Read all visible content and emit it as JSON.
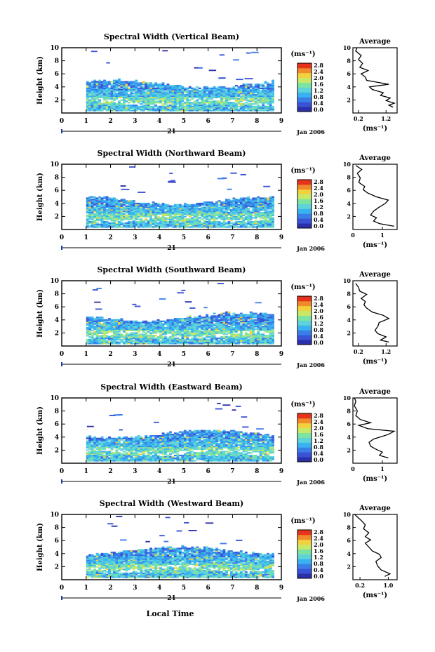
{
  "figure": {
    "xlabel": "Local Time",
    "date_label": "21",
    "month_label": "Jan 2006",
    "ylabel": "Height (km)",
    "units": "(ms⁻¹)",
    "avg_title": "Average",
    "avg_xlabel": "(ms⁻¹)",
    "colorbar_ticks": [
      "0.0",
      "0.4",
      "0.8",
      "1.2",
      "1.6",
      "2.0",
      "2.4",
      "2.8"
    ],
    "colors": [
      "#ffffff",
      "#2b2fa8",
      "#3a53d6",
      "#3a7fe8",
      "#38b2f0",
      "#5fd4d8",
      "#7de3a0",
      "#c8e86a",
      "#f2d23c",
      "#f08a2a",
      "#e6331c"
    ]
  },
  "chart_data": [
    {
      "type": "heatmap",
      "title": "Spectral Width (Vertical Beam)",
      "x_ticks": [
        "0",
        "1",
        "2",
        "3",
        "4",
        "5",
        "6",
        "7",
        "8",
        "9"
      ],
      "y_ticks": [
        "2",
        "4",
        "6",
        "8",
        "10"
      ],
      "xlim": [
        0,
        9
      ],
      "ylim": [
        0,
        10
      ],
      "data_columns": [
        1.0,
        8.6
      ],
      "clim": [
        0.0,
        2.8
      ],
      "avg": {
        "x_ticks": [
          "0.2",
          "1.2"
        ],
        "xlim": [
          0.0,
          1.6
        ],
        "profile": [
          [
            1.45,
            0.9
          ],
          [
            1.3,
            1.2
          ],
          [
            1.5,
            1.5
          ],
          [
            1.2,
            1.9
          ],
          [
            1.35,
            2.3
          ],
          [
            1.0,
            2.7
          ],
          [
            1.1,
            3.1
          ],
          [
            0.7,
            3.6
          ],
          [
            0.6,
            4.0
          ],
          [
            1.3,
            4.4
          ],
          [
            0.5,
            5.0
          ],
          [
            0.45,
            5.5
          ],
          [
            0.3,
            6.0
          ],
          [
            0.55,
            6.5
          ],
          [
            0.25,
            7.0
          ],
          [
            0.35,
            7.6
          ],
          [
            0.2,
            8.2
          ],
          [
            0.3,
            8.8
          ],
          [
            0.1,
            9.5
          ],
          [
            0.15,
            10.0
          ]
        ]
      }
    },
    {
      "type": "heatmap",
      "title": "Spectral Width (Northward Beam)",
      "x_ticks": [
        "0",
        "1",
        "2",
        "3",
        "4",
        "5",
        "6",
        "7",
        "8",
        "9"
      ],
      "y_ticks": [
        "2",
        "4",
        "6",
        "8",
        "10"
      ],
      "xlim": [
        0,
        9
      ],
      "ylim": [
        0,
        10
      ],
      "data_columns": [
        1.0,
        8.6
      ],
      "clim": [
        0.0,
        2.8
      ],
      "avg": {
        "x_ticks": [
          "0",
          "1"
        ],
        "xlim": [
          0.0,
          1.5
        ],
        "profile": [
          [
            1.4,
            0.5
          ],
          [
            0.9,
            0.9
          ],
          [
            0.7,
            1.3
          ],
          [
            0.8,
            1.8
          ],
          [
            0.6,
            2.2
          ],
          [
            0.7,
            2.8
          ],
          [
            0.85,
            3.3
          ],
          [
            1.1,
            4.0
          ],
          [
            1.2,
            4.5
          ],
          [
            0.8,
            5.0
          ],
          [
            0.5,
            5.6
          ],
          [
            0.35,
            6.1
          ],
          [
            0.4,
            6.6
          ],
          [
            0.2,
            7.2
          ],
          [
            0.25,
            7.9
          ],
          [
            0.15,
            8.6
          ],
          [
            0.3,
            9.2
          ],
          [
            0.1,
            9.8
          ]
        ]
      }
    },
    {
      "type": "heatmap",
      "title": "Spectral Width (Southward Beam)",
      "x_ticks": [
        "0",
        "1",
        "2",
        "3",
        "4",
        "5",
        "6",
        "7",
        "8",
        "9"
      ],
      "y_ticks": [
        "2",
        "4",
        "6",
        "8",
        "10"
      ],
      "xlim": [
        0,
        9
      ],
      "ylim": [
        0,
        10
      ],
      "data_columns": [
        1.0,
        8.6
      ],
      "clim": [
        0.0,
        2.8
      ],
      "avg": {
        "x_ticks": [
          "0.2",
          "1.2"
        ],
        "xlim": [
          0.0,
          1.6
        ],
        "profile": [
          [
            1.3,
            0.6
          ],
          [
            1.0,
            0.9
          ],
          [
            1.2,
            1.4
          ],
          [
            0.9,
            1.9
          ],
          [
            0.8,
            2.4
          ],
          [
            0.9,
            3.0
          ],
          [
            0.95,
            3.6
          ],
          [
            1.3,
            4.2
          ],
          [
            1.1,
            4.7
          ],
          [
            0.7,
            5.2
          ],
          [
            0.5,
            5.8
          ],
          [
            0.4,
            6.3
          ],
          [
            0.45,
            6.8
          ],
          [
            0.3,
            7.3
          ],
          [
            0.5,
            7.9
          ],
          [
            0.25,
            8.4
          ],
          [
            0.2,
            9.0
          ],
          [
            0.1,
            9.6
          ]
        ]
      }
    },
    {
      "type": "heatmap",
      "title": "Spectral Width (Eastward Beam)",
      "x_ticks": [
        "0",
        "1",
        "2",
        "3",
        "4",
        "5",
        "6",
        "7",
        "8",
        "9"
      ],
      "y_ticks": [
        "2",
        "4",
        "6",
        "8",
        "10"
      ],
      "xlim": [
        0,
        9
      ],
      "ylim": [
        0,
        10
      ],
      "data_columns": [
        1.0,
        8.6
      ],
      "clim": [
        0.0,
        2.8
      ],
      "avg": {
        "x_ticks": [
          "0",
          "1"
        ],
        "xlim": [
          0.0,
          1.5
        ],
        "profile": [
          [
            1.2,
            0.8
          ],
          [
            0.9,
            1.2
          ],
          [
            1.0,
            1.7
          ],
          [
            0.8,
            2.1
          ],
          [
            0.6,
            2.6
          ],
          [
            0.55,
            3.2
          ],
          [
            0.7,
            3.7
          ],
          [
            1.2,
            4.4
          ],
          [
            1.4,
            4.9
          ],
          [
            0.5,
            5.3
          ],
          [
            0.2,
            5.8
          ],
          [
            0.6,
            6.2
          ],
          [
            0.25,
            6.7
          ],
          [
            0.1,
            7.3
          ],
          [
            0.15,
            8.0
          ],
          [
            0.05,
            8.8
          ],
          [
            0.1,
            9.5
          ],
          [
            0.05,
            10.0
          ]
        ]
      }
    },
    {
      "type": "heatmap",
      "title": "Spectral Width (Westward Beam)",
      "x_ticks": [
        "0",
        "1",
        "2",
        "3",
        "4",
        "5",
        "6",
        "7",
        "8",
        "9"
      ],
      "y_ticks": [
        "2",
        "4",
        "6",
        "8",
        "10"
      ],
      "xlim": [
        0,
        9
      ],
      "ylim": [
        0,
        10
      ],
      "data_columns": [
        1.0,
        8.6
      ],
      "clim": [
        0.0,
        2.8
      ],
      "avg": {
        "x_ticks": [
          "0.2",
          "1.0"
        ],
        "xlim": [
          0.0,
          1.25
        ],
        "profile": [
          [
            0.9,
            0.5
          ],
          [
            1.05,
            0.9
          ],
          [
            0.8,
            1.5
          ],
          [
            0.7,
            2.1
          ],
          [
            0.65,
            2.8
          ],
          [
            0.8,
            3.4
          ],
          [
            0.75,
            3.9
          ],
          [
            0.55,
            4.4
          ],
          [
            0.45,
            5.0
          ],
          [
            0.35,
            5.6
          ],
          [
            0.5,
            6.1
          ],
          [
            0.35,
            6.6
          ],
          [
            0.45,
            7.2
          ],
          [
            0.3,
            7.8
          ],
          [
            0.35,
            8.4
          ],
          [
            0.25,
            9.0
          ],
          [
            0.15,
            9.5
          ],
          [
            0.05,
            10.0
          ]
        ]
      }
    }
  ]
}
